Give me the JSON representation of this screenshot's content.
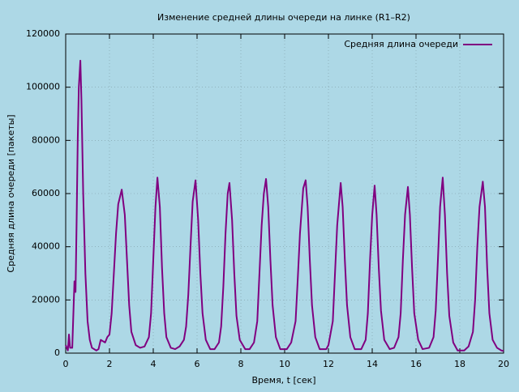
{
  "chart_data": {
    "type": "line",
    "title": "Изменение средней длины очереди на линке (R1–R2)",
    "xlabel": "Время, t [сек]",
    "ylabel": "Средняя длина очереди [пакеты]",
    "x": [
      0,
      0.1,
      0.15,
      0.2,
      0.3,
      0.4,
      0.45,
      0.5,
      0.55,
      0.6,
      0.67,
      0.72,
      0.8,
      0.9,
      1.0,
      1.1,
      1.2,
      1.4,
      1.5,
      1.6,
      1.8,
      1.9,
      2.0,
      2.1,
      2.2,
      2.3,
      2.4,
      2.56,
      2.7,
      2.8,
      2.9,
      3.0,
      3.2,
      3.4,
      3.6,
      3.8,
      3.9,
      4.0,
      4.1,
      4.19,
      4.3,
      4.4,
      4.5,
      4.6,
      4.8,
      5.0,
      5.2,
      5.4,
      5.5,
      5.6,
      5.7,
      5.8,
      5.93,
      6.05,
      6.15,
      6.25,
      6.4,
      6.6,
      6.8,
      7.0,
      7.1,
      7.2,
      7.3,
      7.4,
      7.48,
      7.6,
      7.7,
      7.8,
      7.95,
      8.2,
      8.4,
      8.6,
      8.75,
      8.85,
      8.95,
      9.05,
      9.15,
      9.25,
      9.35,
      9.45,
      9.6,
      9.8,
      10.1,
      10.3,
      10.5,
      10.6,
      10.7,
      10.85,
      10.96,
      11.05,
      11.15,
      11.25,
      11.4,
      11.6,
      11.9,
      12.0,
      12.2,
      12.3,
      12.4,
      12.56,
      12.65,
      12.75,
      12.85,
      13.0,
      13.2,
      13.5,
      13.7,
      13.8,
      13.9,
      14.0,
      14.11,
      14.2,
      14.3,
      14.4,
      14.55,
      14.8,
      15.0,
      15.2,
      15.3,
      15.4,
      15.5,
      15.63,
      15.72,
      15.82,
      15.92,
      16.1,
      16.3,
      16.6,
      16.8,
      16.9,
      17.0,
      17.1,
      17.22,
      17.32,
      17.42,
      17.52,
      17.7,
      17.9,
      18.2,
      18.4,
      18.6,
      18.7,
      18.8,
      18.9,
      19.05,
      19.15,
      19.25,
      19.35,
      19.5,
      19.7,
      19.9,
      20.0
    ],
    "series": [
      {
        "name": "Средняя длина очереди",
        "color": "#800080",
        "values": [
          3000,
          1000,
          7000,
          2000,
          2000,
          27000,
          23000,
          50000,
          80000,
          100000,
          110000,
          95000,
          60000,
          30000,
          12000,
          5000,
          2000,
          1000,
          1500,
          5000,
          4000,
          6000,
          7000,
          15000,
          30000,
          45000,
          56000,
          61500,
          52000,
          35000,
          18000,
          8000,
          3000,
          2000,
          2500,
          6000,
          15000,
          35000,
          55000,
          66000,
          55000,
          32000,
          15000,
          6000,
          2000,
          1500,
          2500,
          5000,
          10000,
          22000,
          40000,
          57000,
          65000,
          50000,
          30000,
          15000,
          5000,
          1500,
          1500,
          4000,
          10000,
          25000,
          45000,
          60000,
          64000,
          50000,
          30000,
          14000,
          5000,
          1500,
          1500,
          4000,
          12000,
          30000,
          48000,
          60000,
          65500,
          55000,
          35000,
          18000,
          6000,
          1500,
          1500,
          4000,
          12000,
          28000,
          45000,
          62000,
          65000,
          55000,
          35000,
          18000,
          6000,
          1500,
          1500,
          3000,
          12000,
          30000,
          48000,
          64000,
          55000,
          35000,
          18000,
          6000,
          1500,
          1500,
          5000,
          15000,
          35000,
          52000,
          63000,
          52000,
          32000,
          16000,
          5000,
          1500,
          2000,
          6000,
          15000,
          35000,
          52000,
          62500,
          52000,
          32000,
          15000,
          5000,
          1500,
          2000,
          6000,
          16000,
          35000,
          55000,
          66000,
          52000,
          30000,
          14000,
          4000,
          1000,
          1000,
          2500,
          8000,
          20000,
          40000,
          55000,
          64500,
          55000,
          32000,
          15000,
          5000,
          2000,
          1000,
          800
        ]
      }
    ],
    "xlim": [
      0,
      20
    ],
    "xticks": [
      0,
      2,
      4,
      6,
      8,
      10,
      12,
      14,
      16,
      18,
      20
    ],
    "ylim": [
      0,
      120000
    ],
    "yticks": [
      0,
      20000,
      40000,
      60000,
      80000,
      100000,
      120000
    ],
    "grid": true,
    "legend": "top-right"
  }
}
